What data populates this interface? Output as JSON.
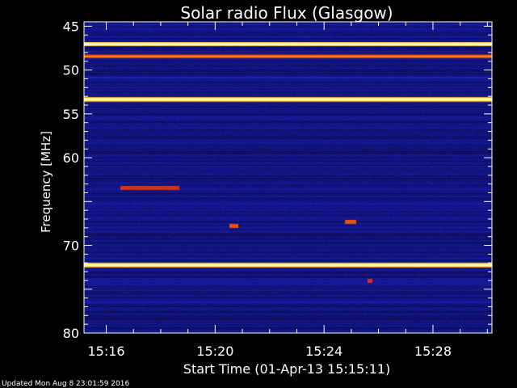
{
  "chart_data": {
    "type": "heatmap",
    "title": "Solar radio Flux (Glasgow)",
    "xlabel": "Start Time (01-Apr-13 15:15:11)",
    "ylabel": "Frequency [MHz]",
    "x_range_minutes": [
      "15:15:11",
      "15:30:10"
    ],
    "x_ticks": [
      "15:16",
      "15:20",
      "15:24",
      "15:28"
    ],
    "y_ticks": [
      45,
      50,
      55,
      60,
      65,
      70,
      75,
      80
    ],
    "y_tick_labels": [
      "45",
      "50",
      "55",
      "60",
      "",
      "70",
      "",
      "80"
    ],
    "ylim": [
      80,
      44.5
    ],
    "colormap": [
      "#000000",
      "#10106e",
      "#1a28c8",
      "#cc1010",
      "#ff7a00",
      "#ffff60",
      "#ffffff"
    ],
    "background_level": 0.2,
    "persistent_bands_mhz": [
      {
        "freq": 47.0,
        "level": 1.0
      },
      {
        "freq": 48.4,
        "level": 0.75
      },
      {
        "freq": 53.3,
        "level": 1.0
      },
      {
        "freq": 72.2,
        "level": 1.0
      },
      {
        "freq": 50.8,
        "level": 0.38
      },
      {
        "freq": 76.5,
        "level": 0.32
      }
    ],
    "bursts": [
      {
        "time_start": "15:16:30",
        "time_end": "15:18:40",
        "freq": 63.4,
        "level": 0.55
      },
      {
        "time_start": "15:20:30",
        "time_end": "15:20:50",
        "freq": 67.7,
        "level": 0.6
      },
      {
        "time_start": "15:24:45",
        "time_end": "15:25:10",
        "freq": 67.3,
        "level": 0.6
      },
      {
        "time_start": "15:25:35",
        "time_end": "15:25:45",
        "freq": 74.0,
        "level": 0.55
      }
    ]
  },
  "footer": "Updated Mon Aug  8 23:01:59 2016"
}
